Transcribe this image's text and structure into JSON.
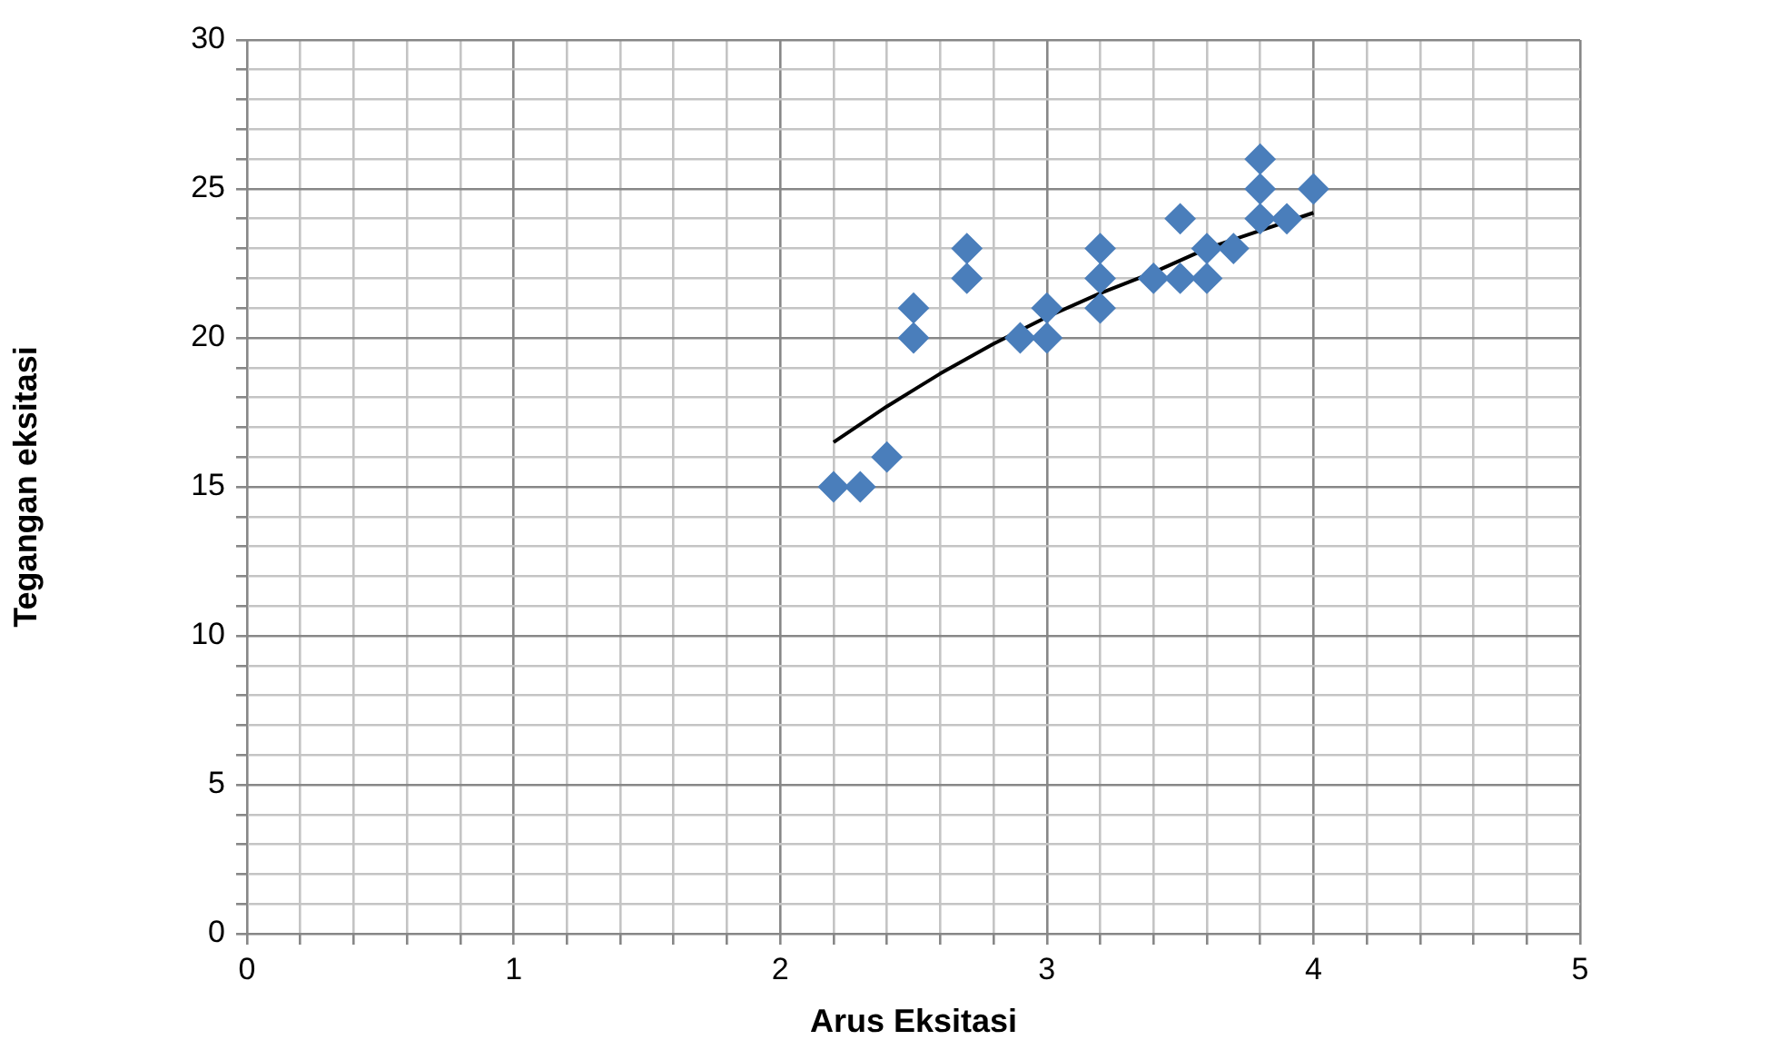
{
  "chart_data": {
    "type": "scatter",
    "xlabel": "Arus Eksitasi",
    "ylabel": "Tegangan eksitasi",
    "xlim": [
      0,
      5
    ],
    "ylim": [
      0,
      30
    ],
    "xticks": [
      0,
      {
        "value": 0.2,
        "label": null
      },
      {
        "value": 0.4,
        "label": null
      },
      {
        "value": 0.6,
        "label": null
      },
      {
        "value": 0.8,
        "label": null
      },
      1,
      {
        "value": 1.2,
        "label": null
      },
      {
        "value": 1.4,
        "label": null
      },
      {
        "value": 1.6,
        "label": null
      },
      {
        "value": 1.8,
        "label": null
      },
      2,
      {
        "value": 2.2,
        "label": null
      },
      {
        "value": 2.4,
        "label": null
      },
      {
        "value": 2.6,
        "label": null
      },
      {
        "value": 2.8,
        "label": null
      },
      3,
      {
        "value": 3.2,
        "label": null
      },
      {
        "value": 3.4,
        "label": null
      },
      {
        "value": 3.6,
        "label": null
      },
      {
        "value": 3.8,
        "label": null
      },
      4,
      {
        "value": 4.2,
        "label": null
      },
      {
        "value": 4.4,
        "label": null
      },
      {
        "value": 4.6,
        "label": null
      },
      {
        "value": 4.8,
        "label": null
      },
      5
    ],
    "yticks": [
      0,
      {
        "value": 1,
        "label": null
      },
      {
        "value": 2,
        "label": null
      },
      {
        "value": 3,
        "label": null
      },
      {
        "value": 4,
        "label": null
      },
      5,
      {
        "value": 6,
        "label": null
      },
      {
        "value": 7,
        "label": null
      },
      {
        "value": 8,
        "label": null
      },
      {
        "value": 9,
        "label": null
      },
      10,
      {
        "value": 11,
        "label": null
      },
      {
        "value": 12,
        "label": null
      },
      {
        "value": 13,
        "label": null
      },
      {
        "value": 14,
        "label": null
      },
      15,
      {
        "value": 16,
        "label": null
      },
      {
        "value": 17,
        "label": null
      },
      {
        "value": 18,
        "label": null
      },
      {
        "value": 19,
        "label": null
      },
      20,
      {
        "value": 21,
        "label": null
      },
      {
        "value": 22,
        "label": null
      },
      {
        "value": 23,
        "label": null
      },
      {
        "value": 24,
        "label": null
      },
      25,
      {
        "value": 26,
        "label": null
      },
      {
        "value": 27,
        "label": null
      },
      {
        "value": 28,
        "label": null
      },
      {
        "value": 29,
        "label": null
      },
      30
    ],
    "grid": true,
    "series": [
      {
        "color": "#4a7ebb",
        "marker": "diamond",
        "x": [
          2.2,
          2.3,
          2.4,
          2.5,
          2.5,
          2.7,
          2.7,
          2.9,
          3.0,
          3.0,
          3.2,
          3.2,
          3.2,
          3.4,
          3.5,
          3.5,
          3.6,
          3.6,
          3.7,
          3.8,
          3.8,
          3.8,
          3.9,
          4.0
        ],
        "values": [
          15,
          15,
          16,
          20,
          21,
          22,
          23,
          20,
          20,
          21,
          21,
          22,
          23,
          22,
          22,
          24,
          22,
          23,
          23,
          24,
          25,
          26,
          24,
          25
        ]
      },
      {
        "type": "line",
        "color": "#000000",
        "marker": "none",
        "line_style": "solid",
        "x": [
          2.2,
          2.4,
          2.6,
          2.8,
          3.0,
          3.2,
          3.4,
          3.6,
          3.8,
          4.0
        ],
        "values": [
          16.5,
          17.7,
          18.8,
          19.8,
          20.7,
          21.5,
          22.2,
          23.0,
          23.6,
          24.2
        ]
      }
    ]
  }
}
